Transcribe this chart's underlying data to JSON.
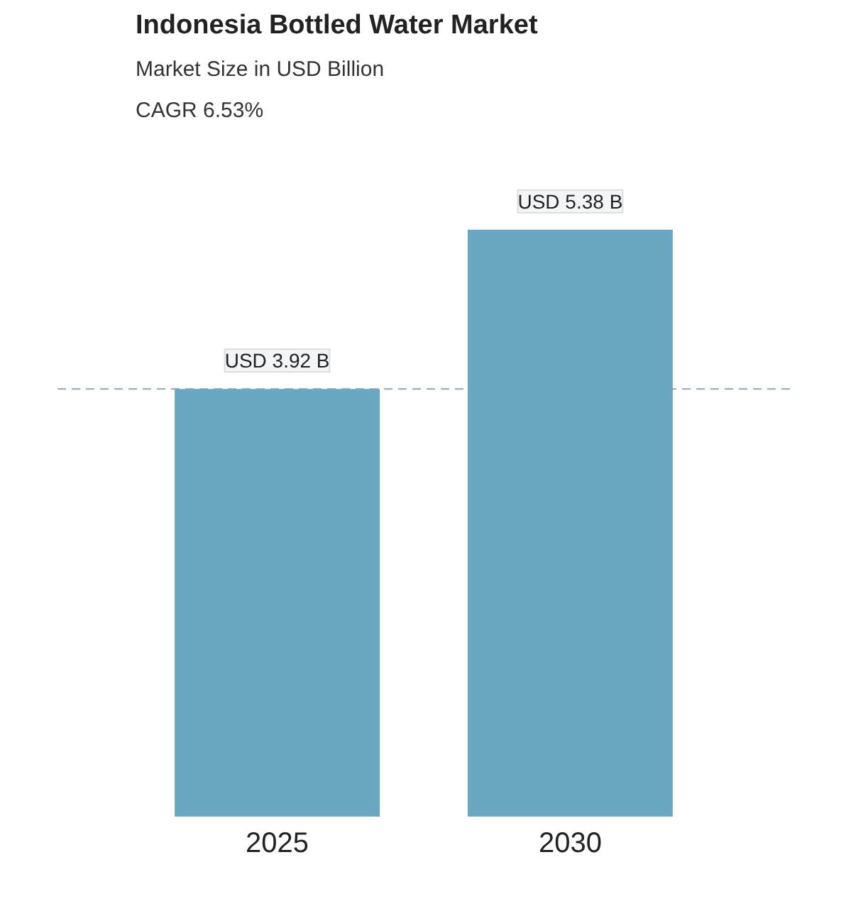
{
  "chart_data": {
    "type": "bar",
    "title": "Indonesia Bottled Water Market",
    "subtitle": "Market Size in USD Billion",
    "annotations": [
      "CAGR 6.53%"
    ],
    "categories": [
      "2025",
      "2030"
    ],
    "series": [
      {
        "color": "#6aa8c2",
        "values": [
          3.92,
          5.38
        ],
        "value_labels": [
          "USD 3.92 B",
          "USD 5.38 B"
        ]
      }
    ],
    "ref_lines": [
      {
        "axis": "y",
        "value": 3.92,
        "label": null,
        "color": "#8fa9b5",
        "line_style": "dashed"
      }
    ],
    "tick_labels": "x"
  }
}
